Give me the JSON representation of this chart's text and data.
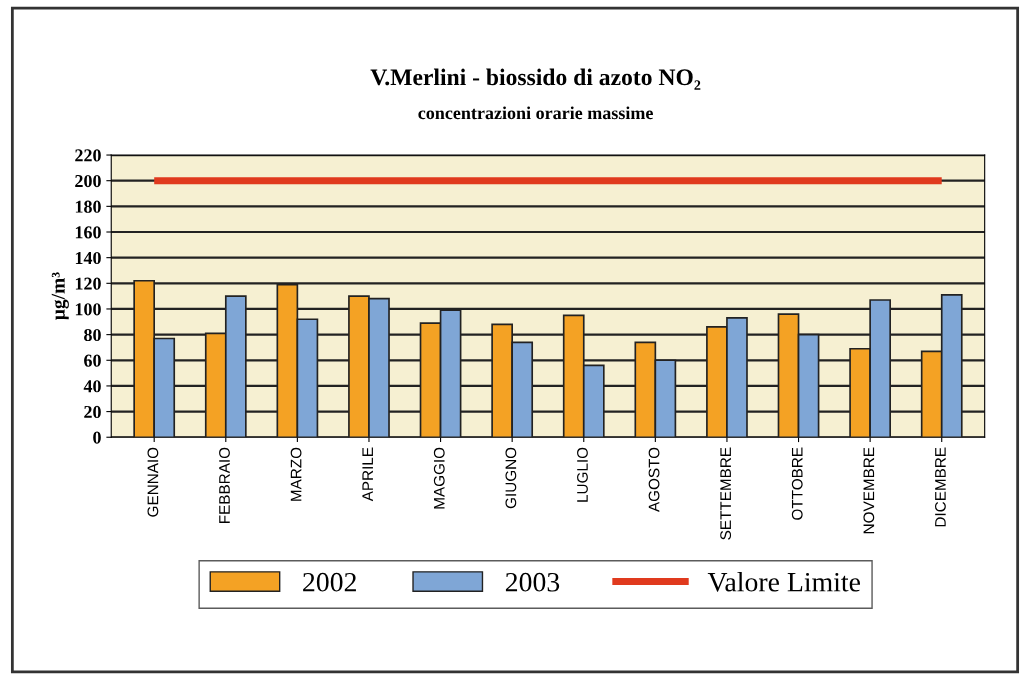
{
  "chart_data": {
    "type": "bar",
    "title": "V.Merlini - biossido di azoto NO₂",
    "subtitle": "concentrazioni orarie massime",
    "ylabel": "µg/m³",
    "categories": [
      "GENNAIO",
      "FEBBRAIO",
      "MARZO",
      "APRILE",
      "MAGGIO",
      "GIUGNO",
      "LUGLIO",
      "AGOSTO",
      "SETTEMBRE",
      "OTTOBRE",
      "NOVEMBRE",
      "DICEMBRE"
    ],
    "series": [
      {
        "name": "2002",
        "color": "#f4a224",
        "values": [
          122,
          81,
          119,
          110,
          89,
          88,
          95,
          74,
          86,
          96,
          69,
          67
        ]
      },
      {
        "name": "2003",
        "color": "#7fa6d6",
        "values": [
          77,
          110,
          92,
          108,
          99,
          74,
          56,
          60,
          93,
          80,
          107,
          111
        ]
      },
      {
        "name": "Valore Limite",
        "type": "line",
        "color": "#e03a1e",
        "values": [
          200,
          200,
          200,
          200,
          200,
          200,
          200,
          200,
          200,
          200,
          200,
          200
        ]
      }
    ],
    "ylim": [
      0,
      220
    ],
    "yticks": [
      0,
      20,
      40,
      60,
      80,
      100,
      120,
      140,
      160,
      180,
      200,
      220
    ],
    "grid": "y",
    "legend": "bottom"
  }
}
